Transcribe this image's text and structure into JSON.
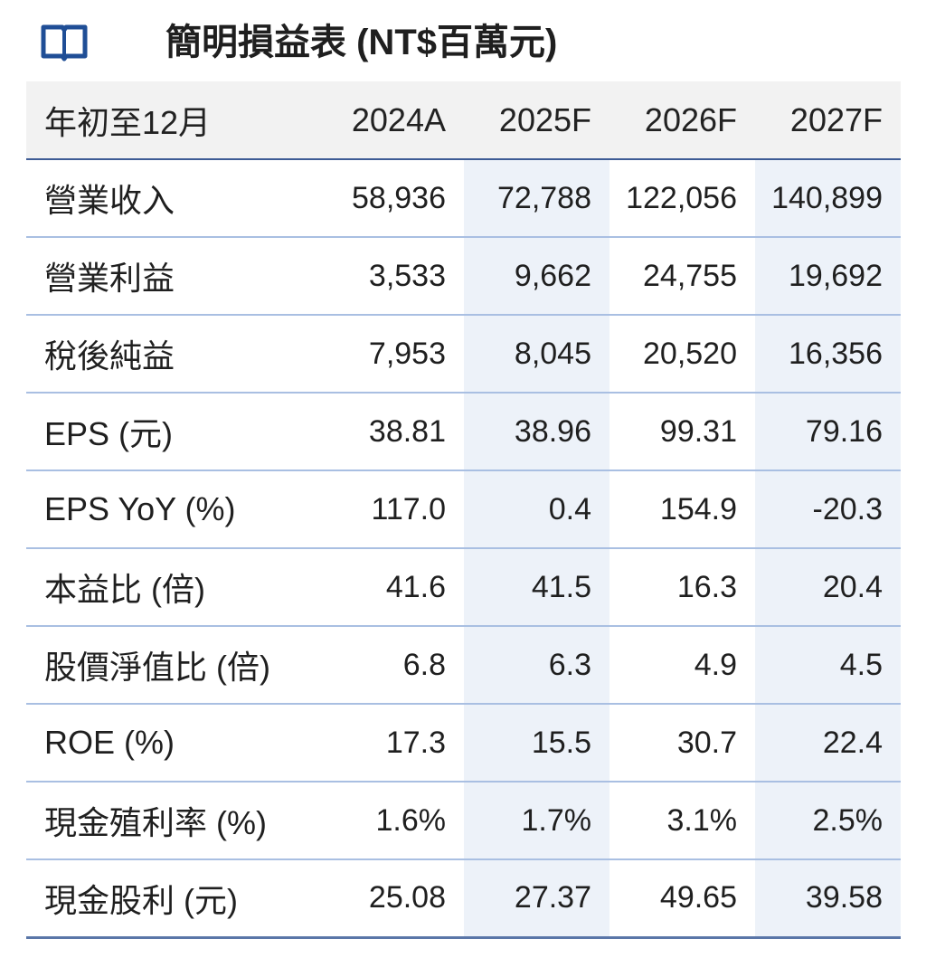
{
  "title": "簡明損益表 (NT$百萬元)",
  "icon": "book-icon",
  "colors": {
    "icon": "#1f4e96",
    "header_bg": "#f2f2f2",
    "header_rule": "#3e5c95",
    "row_rule": "#a9bfe2",
    "shaded_column": "#edf2f9"
  },
  "table": {
    "header": {
      "label": "年初至12月",
      "years": [
        "2024A",
        "2025F",
        "2026F",
        "2027F"
      ]
    },
    "rows": [
      {
        "label": "營業收入",
        "values": [
          "58,936",
          "72,788",
          "122,056",
          "140,899"
        ]
      },
      {
        "label": "營業利益",
        "values": [
          "3,533",
          "9,662",
          "24,755",
          "19,692"
        ]
      },
      {
        "label": "稅後純益",
        "values": [
          "7,953",
          "8,045",
          "20,520",
          "16,356"
        ]
      },
      {
        "label": "EPS (元)",
        "values": [
          "38.81",
          "38.96",
          "99.31",
          "79.16"
        ]
      },
      {
        "label": "EPS YoY (%)",
        "values": [
          "117.0",
          "0.4",
          "154.9",
          "-20.3"
        ]
      },
      {
        "label": "本益比 (倍)",
        "values": [
          "41.6",
          "41.5",
          "16.3",
          "20.4"
        ]
      },
      {
        "label": "股價淨值比 (倍)",
        "values": [
          "6.8",
          "6.3",
          "4.9",
          "4.5"
        ]
      },
      {
        "label": "ROE (%)",
        "values": [
          "17.3",
          "15.5",
          "30.7",
          "22.4"
        ]
      },
      {
        "label": "現金殖利率 (%)",
        "values": [
          "1.6%",
          "1.7%",
          "3.1%",
          "2.5%"
        ]
      },
      {
        "label": "現金股利 (元)",
        "values": [
          "25.08",
          "27.37",
          "49.65",
          "39.58"
        ]
      }
    ]
  }
}
